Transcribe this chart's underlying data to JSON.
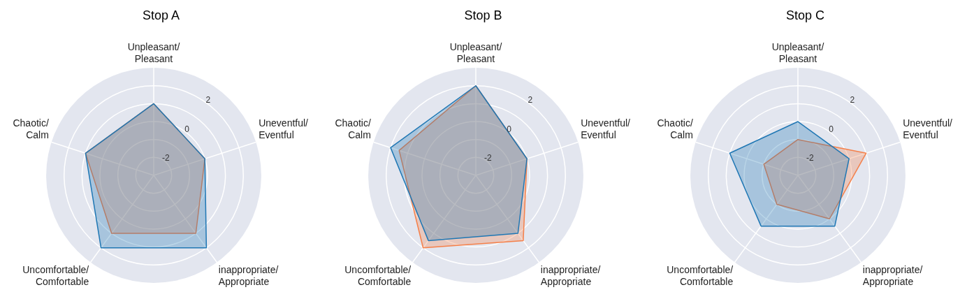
{
  "chart_data": [
    {
      "type": "radar",
      "title": "Stop A",
      "categories": [
        "Unpleasant/Pleasant",
        "Uneventful/Eventful",
        "inappropriate/Appropriate",
        "Uncomfortable/Comfortable",
        "Chaotic/Calm"
      ],
      "series": [
        {
          "color": "#1f77b4",
          "values": [
            1,
            0,
            2,
            2,
            1
          ]
        },
        {
          "color": "#f5804a",
          "values": [
            1,
            0,
            1,
            1,
            1
          ]
        }
      ],
      "ylim": [
        -3,
        3
      ],
      "yticks": [
        -2,
        0,
        2
      ],
      "grid": true
    },
    {
      "type": "radar",
      "title": "Stop B",
      "categories": [
        "Unpleasant/Pleasant",
        "Uneventful/Eventful",
        "inappropriate/Appropriate",
        "Uncomfortable/Comfortable",
        "Chaotic/Calm"
      ],
      "series": [
        {
          "color": "#1f77b4",
          "values": [
            2,
            0,
            1,
            1.5,
            2
          ]
        },
        {
          "color": "#f5804a",
          "values": [
            2,
            0,
            1.5,
            2,
            1.5
          ]
        }
      ],
      "ylim": [
        -3,
        3
      ],
      "yticks": [
        -2,
        0,
        2
      ],
      "grid": true
    },
    {
      "type": "radar",
      "title": "Stop C",
      "categories": [
        "Unpleasant/Pleasant",
        "Uneventful/Eventful",
        "inappropriate/Appropriate",
        "Uncomfortable/Comfortable",
        "Chaotic/Calm"
      ],
      "series": [
        {
          "color": "#1f77b4",
          "values": [
            0,
            0,
            0.5,
            0.5,
            1
          ]
        },
        {
          "color": "#f5804a",
          "values": [
            -1,
            1,
            0,
            -1,
            -1
          ]
        }
      ],
      "ylim": [
        -3,
        3
      ],
      "yticks": [
        -2,
        0,
        2
      ],
      "grid": true
    }
  ]
}
